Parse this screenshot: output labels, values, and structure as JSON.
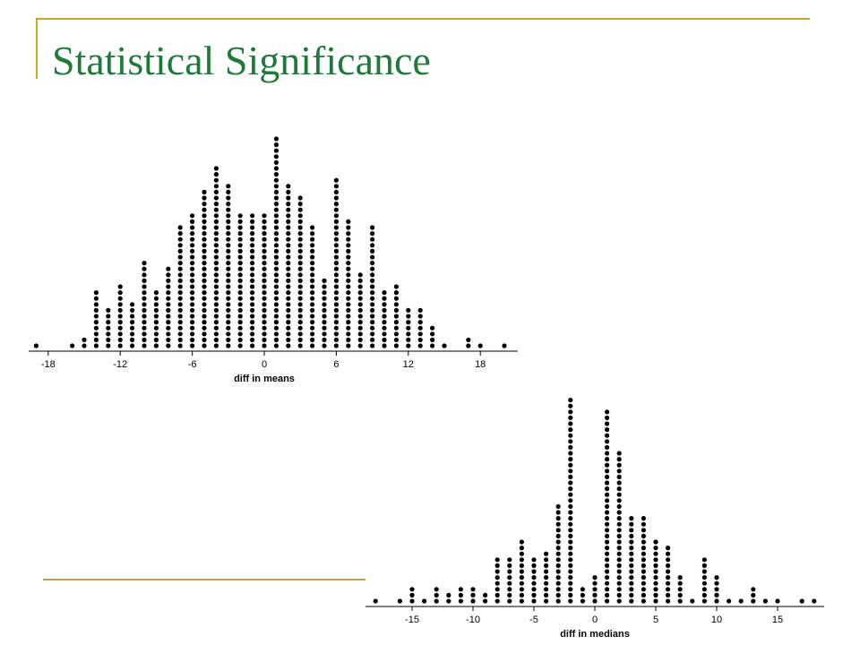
{
  "slide": {
    "title": "Statistical Significance",
    "title_color": "#1f7a3a",
    "accent_color": "#c8a632"
  },
  "chart_data": [
    {
      "type": "scatter",
      "subtype": "dot_plot",
      "xlabel": "diff in means",
      "ylabel": "",
      "xlim": [
        -19.5,
        21
      ],
      "xticks": [
        -18,
        -12,
        -6,
        0,
        6,
        12,
        18
      ],
      "grid": false,
      "series": [
        {
          "x": [
            -19,
            -16,
            -15,
            -14,
            -13,
            -12,
            -11,
            -10,
            -9,
            -8,
            -7,
            -6,
            -5,
            -4,
            -3,
            -2,
            -1,
            0,
            1,
            2,
            3,
            4,
            5,
            6,
            7,
            8,
            9,
            10,
            11,
            12,
            13,
            14,
            15,
            17,
            18,
            20
          ],
          "counts": [
            1,
            1,
            2,
            10,
            7,
            11,
            8,
            15,
            10,
            14,
            21,
            23,
            27,
            31,
            28,
            23,
            23,
            23,
            36,
            28,
            26,
            21,
            12,
            29,
            22,
            13,
            21,
            10,
            11,
            7,
            7,
            4,
            1,
            2,
            1,
            1
          ]
        }
      ]
    },
    {
      "type": "scatter",
      "subtype": "dot_plot",
      "xlabel": "diff in medians",
      "ylabel": "",
      "xlim": [
        -18.8,
        18.8
      ],
      "xticks": [
        -15,
        -10,
        -5,
        0,
        5,
        10,
        15
      ],
      "grid": false,
      "series": [
        {
          "x": [
            -18,
            -16,
            -15,
            -14,
            -13,
            -12,
            -11,
            -10,
            -9,
            -8,
            -7,
            -6,
            -5,
            -4,
            -3,
            -2,
            -1,
            0,
            1,
            2,
            3,
            4,
            5,
            6,
            7,
            8,
            9,
            10,
            11,
            12,
            13,
            14,
            15,
            17,
            18
          ],
          "counts": [
            1,
            1,
            3,
            1,
            3,
            2,
            3,
            3,
            2,
            8,
            8,
            11,
            8,
            9,
            17,
            35,
            3,
            5,
            33,
            26,
            15,
            15,
            11,
            10,
            5,
            1,
            8,
            5,
            1,
            1,
            3,
            1,
            1,
            1,
            1
          ]
        }
      ]
    }
  ]
}
